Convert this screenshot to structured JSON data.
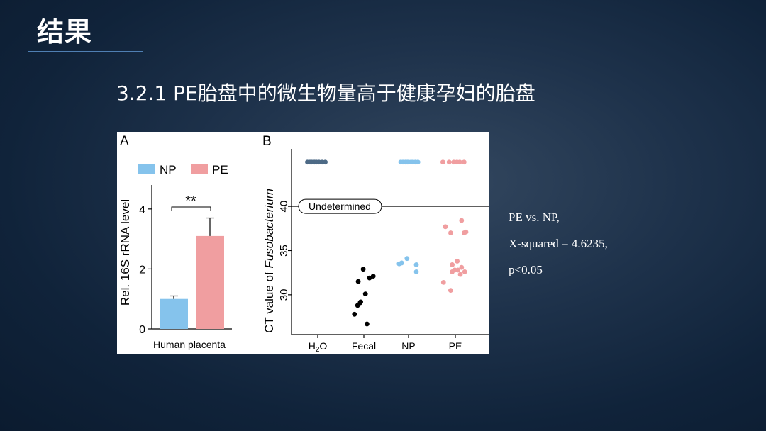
{
  "slide": {
    "title": "结果",
    "subtitle": "3.2.1 PE胎盘中的微生物量高于健康孕妇的胎盘"
  },
  "stats": {
    "line1": "PE vs. NP,",
    "line2": "X-squared = 4.6235,",
    "line3": "p<0.05"
  },
  "colors": {
    "NP": "#85c3ec",
    "PE": "#f09ea0",
    "H2O": "#4d6a86",
    "Fecal": "#000000"
  },
  "chart_data": [
    {
      "panel": "A",
      "type": "bar",
      "categories": [
        "NP",
        "PE"
      ],
      "legend": [
        "NP",
        "PE"
      ],
      "values": [
        1.0,
        3.1
      ],
      "errors": [
        0.1,
        0.6
      ],
      "xlabel": "Human placenta",
      "ylabel": "Rel. 16S rRNA level",
      "ylim": [
        0,
        4.8
      ],
      "yticks": [
        0,
        2,
        4
      ],
      "significance": "**"
    },
    {
      "panel": "B",
      "type": "scatter",
      "ylabel": "CT value of Fusobacterium",
      "ylabel_prefix": "CT value of ",
      "ylabel_italic": "Fusobacterium",
      "categories": [
        "H2O",
        "Fecal",
        "NP",
        "PE"
      ],
      "category_labels": [
        {
          "main": "H",
          "sub": "2",
          "rest": "O"
        },
        {
          "main": "Fecal",
          "sub": "",
          "rest": ""
        },
        {
          "main": "NP",
          "sub": "",
          "rest": ""
        },
        {
          "main": "PE",
          "sub": "",
          "rest": ""
        }
      ],
      "yticks": [
        30,
        35,
        40
      ],
      "ylim": [
        25.5,
        46.5
      ],
      "threshold": 40,
      "threshold_label": "Undetermined",
      "series": [
        {
          "name": "H2O",
          "points": [
            [
              -0.33,
              45
            ],
            [
              -0.25,
              45
            ],
            [
              -0.2,
              45
            ],
            [
              -0.14,
              45
            ],
            [
              -0.1,
              45
            ],
            [
              -0.04,
              45
            ],
            [
              0.04,
              45
            ],
            [
              0.14,
              45
            ],
            [
              0.24,
              45
            ]
          ]
        },
        {
          "name": "Fecal",
          "points": [
            [
              -0.3,
              27.8
            ],
            [
              -0.2,
              28.8
            ],
            [
              -0.1,
              29.2
            ],
            [
              -0.18,
              31.5
            ],
            [
              -0.02,
              32.9
            ],
            [
              0.05,
              30.1
            ],
            [
              0.18,
              31.9
            ],
            [
              0.3,
              32.1
            ],
            [
              0.1,
              26.7
            ],
            [
              -0.12,
              29.1
            ]
          ]
        },
        {
          "name": "NP",
          "points": [
            [
              -0.25,
              45
            ],
            [
              -0.18,
              45
            ],
            [
              -0.1,
              45
            ],
            [
              -0.04,
              45
            ],
            [
              0.0,
              45
            ],
            [
              0.08,
              45
            ],
            [
              0.14,
              45
            ],
            [
              0.22,
              45
            ],
            [
              0.3,
              45
            ],
            [
              -0.3,
              33.5
            ],
            [
              -0.22,
              33.6
            ],
            [
              -0.05,
              34.1
            ],
            [
              0.25,
              33.4
            ],
            [
              0.25,
              32.6
            ]
          ]
        },
        {
          "name": "PE",
          "points": [
            [
              -0.4,
              45
            ],
            [
              -0.2,
              45
            ],
            [
              -0.05,
              45
            ],
            [
              0.05,
              45
            ],
            [
              0.14,
              45
            ],
            [
              0.28,
              45
            ],
            [
              -0.38,
              31.4
            ],
            [
              -0.1,
              33.4
            ],
            [
              -0.1,
              32.6
            ],
            [
              -0.02,
              32.8
            ],
            [
              0.08,
              32.8
            ],
            [
              0.06,
              33.8
            ],
            [
              0.16,
              32.3
            ],
            [
              0.2,
              33.1
            ],
            [
              0.3,
              32.6
            ],
            [
              0.2,
              38.4
            ],
            [
              0.28,
              37.0
            ],
            [
              0.34,
              37.1
            ],
            [
              -0.15,
              37.0
            ],
            [
              -0.32,
              37.7
            ],
            [
              -0.15,
              30.5
            ]
          ]
        }
      ]
    }
  ]
}
